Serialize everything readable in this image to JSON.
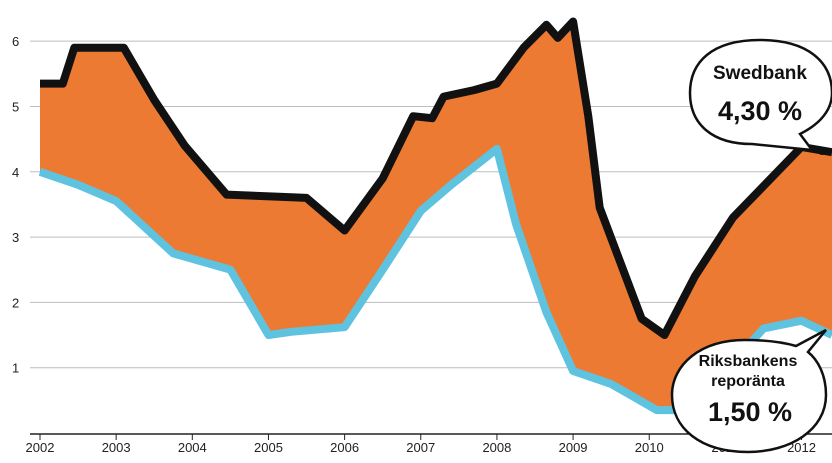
{
  "chart_data": {
    "type": "area",
    "ylim": [
      0,
      6.4
    ],
    "xlim": [
      2002,
      2012.4
    ],
    "y_ticks": [
      "1",
      "2",
      "3",
      "4",
      "5",
      "6"
    ],
    "x_ticks": [
      "2002",
      "2003",
      "2004",
      "2005",
      "2006",
      "2007",
      "2008",
      "2009",
      "2010",
      "2011",
      "2012"
    ],
    "grid": true,
    "fill_color": "#ec7a32",
    "series": [
      {
        "name": "Swedbank",
        "color": "#111111",
        "x": [
          2002.0,
          2002.3,
          2002.45,
          2003.1,
          2003.5,
          2003.9,
          2004.45,
          2005.1,
          2005.5,
          2006.0,
          2006.5,
          2006.9,
          2007.15,
          2007.3,
          2007.7,
          2008.0,
          2008.35,
          2008.65,
          2008.8,
          2009.0,
          2009.2,
          2009.35,
          2009.9,
          2010.2,
          2010.6,
          2011.1,
          2012.0,
          2012.4
        ],
        "y": [
          5.35,
          5.35,
          5.9,
          5.9,
          5.1,
          4.4,
          3.65,
          3.62,
          3.6,
          3.1,
          3.9,
          4.85,
          4.82,
          5.15,
          5.25,
          5.35,
          5.9,
          6.25,
          6.05,
          6.3,
          4.85,
          3.45,
          1.75,
          1.5,
          2.4,
          3.3,
          4.38,
          4.3
        ]
      },
      {
        "name": "Riksbankens reporänta",
        "color": "#5fc3e0",
        "x": [
          2002.0,
          2002.5,
          2003.0,
          2003.75,
          2004.5,
          2005.0,
          2005.3,
          2006.0,
          2006.5,
          2007.0,
          2007.4,
          2008.0,
          2008.25,
          2008.65,
          2009.0,
          2009.5,
          2010.1,
          2010.5,
          2011.0,
          2011.5,
          2012.0,
          2012.4
        ],
        "y": [
          4.0,
          3.8,
          3.55,
          2.75,
          2.5,
          1.5,
          1.55,
          1.62,
          2.5,
          3.4,
          3.8,
          4.35,
          3.2,
          1.85,
          0.95,
          0.75,
          0.35,
          0.35,
          0.95,
          1.6,
          1.72,
          1.5
        ]
      }
    ],
    "annotations": [
      {
        "series": "Swedbank",
        "name": "Swedbank",
        "value": "4,30 %"
      },
      {
        "series": "Riksbankens reporänta",
        "name_line1": "Riksbankens",
        "name_line2": "reporänta",
        "value": "1,50 %"
      }
    ]
  }
}
